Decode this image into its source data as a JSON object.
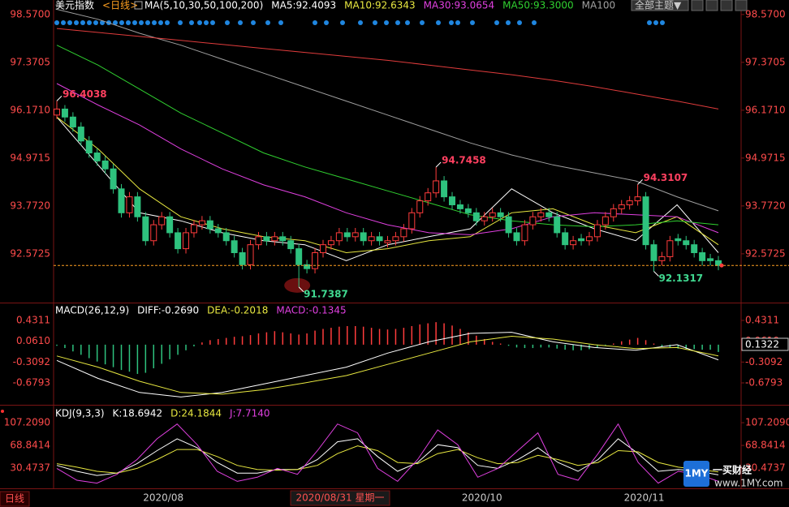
{
  "header": {
    "symbol": "美元指数",
    "period": "<日线>",
    "ma_params": "MA(5,10,30,50,100,200)",
    "theme_button": "全部主题▼"
  },
  "chart_data": [
    {
      "type": "candlestick",
      "up_color": "#ff3c3c",
      "down_color": "#2ec27e",
      "last_line_color": "#ffa020",
      "ylim": [
        91.37,
        98.73
      ],
      "yticks": [
        {
          "value": 98.57,
          "label": "98.5700"
        },
        97.3705,
        {
          "value": 96.171,
          "label": "96.1710"
        },
        94.9715,
        {
          "value": 93.772,
          "label": "93.7720"
        },
        92.5725
      ],
      "candles": [
        [
          96.05,
          96.4038,
          95.95,
          96.2
        ],
        [
          96.2,
          96.3,
          95.88,
          96.0
        ],
        [
          96.0,
          96.12,
          95.63,
          95.75
        ],
        [
          95.75,
          95.87,
          95.28,
          95.4
        ],
        [
          95.4,
          95.52,
          94.98,
          95.1
        ],
        [
          95.1,
          95.22,
          94.78,
          94.9
        ],
        [
          94.9,
          95.02,
          94.58,
          94.7
        ],
        [
          94.7,
          94.82,
          94.08,
          94.2
        ],
        [
          94.2,
          94.32,
          93.48,
          93.6
        ],
        [
          93.6,
          94.12,
          93.48,
          94.0
        ],
        [
          94.0,
          94.12,
          93.38,
          93.5
        ],
        [
          93.5,
          93.62,
          92.78,
          92.9
        ],
        [
          92.9,
          93.42,
          92.78,
          93.3
        ],
        [
          93.3,
          93.62,
          93.18,
          93.5
        ],
        [
          93.5,
          93.62,
          92.98,
          93.1
        ],
        [
          93.1,
          93.22,
          92.58,
          92.7
        ],
        [
          92.7,
          93.22,
          92.58,
          93.1
        ],
        [
          93.1,
          93.42,
          92.98,
          93.3
        ],
        [
          93.3,
          93.52,
          93.18,
          93.4
        ],
        [
          93.4,
          93.52,
          93.08,
          93.2
        ],
        [
          93.2,
          93.32,
          92.98,
          93.1
        ],
        [
          93.1,
          93.22,
          92.78,
          92.9
        ],
        [
          92.9,
          93.02,
          92.48,
          92.6
        ],
        [
          92.6,
          92.72,
          92.18,
          92.3
        ],
        [
          92.3,
          92.92,
          92.18,
          92.8
        ],
        [
          92.8,
          93.12,
          92.68,
          93.0
        ],
        [
          93.0,
          93.12,
          92.78,
          92.9
        ],
        [
          92.9,
          93.12,
          92.78,
          93.0
        ],
        [
          93.0,
          93.12,
          92.78,
          92.9
        ],
        [
          92.9,
          93.02,
          92.58,
          92.7
        ],
        [
          92.7,
          92.82,
          91.7387,
          92.3
        ],
        [
          92.3,
          92.42,
          92.08,
          92.2
        ],
        [
          92.2,
          92.72,
          92.08,
          92.6
        ],
        [
          92.6,
          92.92,
          92.48,
          92.8
        ],
        [
          92.8,
          93.02,
          92.68,
          92.9
        ],
        [
          92.9,
          93.22,
          92.78,
          93.1
        ],
        [
          93.1,
          93.22,
          92.88,
          93.0
        ],
        [
          93.0,
          93.22,
          92.88,
          93.1
        ],
        [
          93.1,
          93.22,
          92.78,
          92.9
        ],
        [
          92.9,
          93.12,
          92.78,
          93.0
        ],
        [
          93.0,
          93.12,
          92.78,
          92.9
        ],
        [
          92.85,
          93.02,
          92.73,
          92.9
        ],
        [
          92.9,
          93.12,
          92.78,
          93.0
        ],
        [
          93.0,
          93.32,
          92.88,
          93.2
        ],
        [
          93.2,
          93.72,
          93.08,
          93.6
        ],
        [
          93.6,
          94.02,
          93.48,
          93.9
        ],
        [
          93.9,
          94.22,
          93.78,
          94.1
        ],
        [
          94.1,
          94.7458,
          93.98,
          94.4
        ],
        [
          94.4,
          94.52,
          93.88,
          94.0
        ],
        [
          94.0,
          94.12,
          93.68,
          93.8
        ],
        [
          93.8,
          93.92,
          93.58,
          93.7
        ],
        [
          93.7,
          93.82,
          93.48,
          93.6
        ],
        [
          93.6,
          93.72,
          93.28,
          93.4
        ],
        [
          93.4,
          93.62,
          93.28,
          93.5
        ],
        [
          93.5,
          93.72,
          93.38,
          93.6
        ],
        [
          93.6,
          93.72,
          93.38,
          93.5
        ],
        [
          93.5,
          93.62,
          92.98,
          93.1
        ],
        [
          93.1,
          93.22,
          92.78,
          92.9
        ],
        [
          92.9,
          93.42,
          92.78,
          93.3
        ],
        [
          93.3,
          93.62,
          93.18,
          93.5
        ],
        [
          93.5,
          93.72,
          93.38,
          93.6
        ],
        [
          93.6,
          93.72,
          93.38,
          93.5
        ],
        [
          93.5,
          93.62,
          92.98,
          93.1
        ],
        [
          93.1,
          93.22,
          92.68,
          92.8
        ],
        [
          92.8,
          93.02,
          92.68,
          92.9
        ],
        [
          92.95,
          93.07,
          92.78,
          92.9
        ],
        [
          92.9,
          93.12,
          92.78,
          93.0
        ],
        [
          93.0,
          93.42,
          92.88,
          93.3
        ],
        [
          93.3,
          93.62,
          93.18,
          93.5
        ],
        [
          93.5,
          93.82,
          93.38,
          93.7
        ],
        [
          93.7,
          93.92,
          93.58,
          93.8
        ],
        [
          93.8,
          94.02,
          93.68,
          93.9
        ],
        [
          93.9,
          94.3107,
          93.78,
          94.0
        ],
        [
          94.0,
          94.12,
          92.68,
          92.8
        ],
        [
          92.8,
          92.92,
          92.1317,
          92.4
        ],
        [
          92.4,
          92.62,
          92.28,
          92.5
        ],
        [
          92.5,
          93.02,
          92.38,
          92.9
        ],
        [
          92.95,
          93.07,
          92.78,
          92.9
        ],
        [
          92.9,
          93.02,
          92.68,
          92.8
        ],
        [
          92.8,
          92.92,
          92.48,
          92.6
        ],
        [
          92.6,
          92.72,
          92.28,
          92.4
        ],
        [
          92.45,
          92.57,
          92.28,
          92.4
        ],
        [
          92.4,
          92.52,
          92.16,
          92.28
        ]
      ],
      "series": [
        {
          "name": "MA5:92.4093",
          "color": "#ffffff",
          "values": [
            96.0,
            94.8,
            93.6,
            93.4,
            93.1,
            92.9,
            92.8,
            92.4,
            92.8,
            93.0,
            93.2,
            94.2,
            93.6,
            93.2,
            92.9,
            93.8,
            92.6
          ]
        },
        {
          "name": "MA10:92.6343",
          "color": "#e8e840",
          "values": [
            96.0,
            95.2,
            94.2,
            93.5,
            93.2,
            93.0,
            92.9,
            92.6,
            92.7,
            92.9,
            93.0,
            93.6,
            93.7,
            93.3,
            93.1,
            93.5,
            92.8
          ]
        },
        {
          "name": "MA30:93.0654",
          "color": "#e040e0",
          "values": [
            96.84,
            96.3,
            95.8,
            95.2,
            94.7,
            94.3,
            94.0,
            93.6,
            93.3,
            93.1,
            93.05,
            93.2,
            93.5,
            93.6,
            93.55,
            93.5,
            93.1
          ]
        },
        {
          "name": "MA50:93.3000",
          "color": "#30d030",
          "values": [
            97.8,
            97.3,
            96.7,
            96.1,
            95.6,
            95.1,
            94.75,
            94.45,
            94.15,
            93.85,
            93.55,
            93.4,
            93.3,
            93.25,
            93.3,
            93.4,
            93.3
          ]
        },
        {
          "name": "MA100",
          "color": "#a0a0a0",
          "values": [
            98.7,
            98.45,
            98.1,
            97.8,
            97.45,
            97.1,
            96.75,
            96.4,
            96.05,
            95.7,
            95.35,
            95.05,
            94.8,
            94.6,
            94.4,
            94.0,
            93.65
          ]
        },
        {
          "color": "#e03c3c",
          "values": [
            98.22,
            98.12,
            98.02,
            97.92,
            97.82,
            97.72,
            97.62,
            97.52,
            97.42,
            97.3,
            97.18,
            97.06,
            96.92,
            96.76,
            96.58,
            96.4,
            96.2
          ]
        }
      ]
    },
    {
      "type": "macd",
      "title": "MACD(26,12,9)",
      "up_color": "#ff3c3c",
      "down_color": "#2ec27e",
      "cursor_value": 0.1322,
      "ylim": [
        -1.04,
        0.705
      ],
      "yticks": [
        0.4311,
        {
          "value": 0.061,
          "label": "0.0610"
        },
        -0.3092,
        -0.6793
      ],
      "series": [
        {
          "name": "DIFF:-0.2690",
          "color": "#ffffff",
          "values": [
            -0.28,
            -0.6,
            -0.85,
            -0.93,
            -0.85,
            -0.7,
            -0.55,
            -0.4,
            -0.15,
            0.05,
            0.2,
            0.22,
            0.05,
            -0.05,
            -0.1,
            0.0,
            -0.27
          ]
        },
        {
          "name": "DEA:-0.2018",
          "color": "#e8e840",
          "values": [
            -0.2,
            -0.4,
            -0.65,
            -0.85,
            -0.88,
            -0.8,
            -0.68,
            -0.55,
            -0.35,
            -0.15,
            0.05,
            0.15,
            0.1,
            0.0,
            -0.07,
            -0.05,
            -0.2
          ]
        },
        {
          "name": "MACD:-0.1345",
          "color": "#e040e0",
          "histogram": true,
          "values": [
            -0.02,
            -0.06,
            -0.12,
            -0.18,
            -0.24,
            -0.3,
            -0.35,
            -0.4,
            -0.45,
            -0.48,
            -0.52,
            -0.5,
            -0.42,
            -0.34,
            -0.26,
            -0.18,
            -0.1,
            -0.03,
            0.04,
            0.08,
            0.1,
            0.12,
            0.14,
            0.15,
            0.17,
            0.2,
            0.22,
            0.24,
            0.22,
            0.2,
            0.18,
            0.2,
            0.25,
            0.28,
            0.3,
            0.32,
            0.33,
            0.33,
            0.32,
            0.3,
            0.28,
            0.27,
            0.28,
            0.3,
            0.33,
            0.36,
            0.38,
            0.4,
            0.38,
            0.34,
            0.28,
            0.22,
            0.16,
            0.1,
            0.05,
            0.02,
            -0.02,
            -0.05,
            -0.06,
            -0.06,
            -0.05,
            -0.05,
            -0.07,
            -0.09,
            -0.1,
            -0.1,
            -0.08,
            -0.05,
            -0.02,
            0.02,
            0.06,
            0.09,
            0.12,
            0.08,
            0.02,
            -0.03,
            -0.06,
            -0.07,
            -0.08,
            -0.08,
            -0.09,
            -0.09,
            -0.13
          ]
        }
      ]
    },
    {
      "type": "kdj",
      "title": "KDJ(9,3,3)",
      "ylim": [
        -1.0,
        132.0
      ],
      "yticks": [
        {
          "value": 107.209,
          "label": "107.2090"
        },
        68.8414,
        30.4737
      ],
      "series": [
        {
          "name": "K:18.6942",
          "color": "#ffffff",
          "values": [
            35,
            25,
            18,
            22,
            38,
            60,
            80,
            65,
            40,
            22,
            22,
            28,
            28,
            45,
            75,
            80,
            50,
            25,
            40,
            70,
            65,
            35,
            30,
            45,
            65,
            40,
            25,
            45,
            80,
            55,
            25,
            28,
            25,
            19
          ]
        },
        {
          "name": "D:24.1844",
          "color": "#e8e840",
          "values": [
            38,
            32,
            25,
            22,
            30,
            45,
            62,
            62,
            50,
            35,
            28,
            27,
            28,
            35,
            55,
            68,
            60,
            40,
            38,
            55,
            62,
            48,
            38,
            40,
            52,
            45,
            35,
            40,
            60,
            58,
            40,
            32,
            28,
            24
          ]
        },
        {
          "name": "J:7.7140",
          "color": "#e040e0",
          "values": [
            30,
            10,
            5,
            20,
            45,
            80,
            105,
            70,
            25,
            8,
            15,
            30,
            20,
            60,
            105,
            90,
            30,
            8,
            45,
            95,
            70,
            15,
            30,
            60,
            90,
            20,
            10,
            55,
            105,
            40,
            5,
            25,
            20,
            8
          ]
        }
      ]
    }
  ],
  "footer": {
    "period": "日线",
    "cursor_date": "2020/08/31 星期一",
    "dates": [
      "2020/08",
      "2020/10",
      "2020/11"
    ]
  },
  "watermark": {
    "logo": "1MY",
    "brand": "一买财经",
    "url": "www.1MY.com"
  }
}
